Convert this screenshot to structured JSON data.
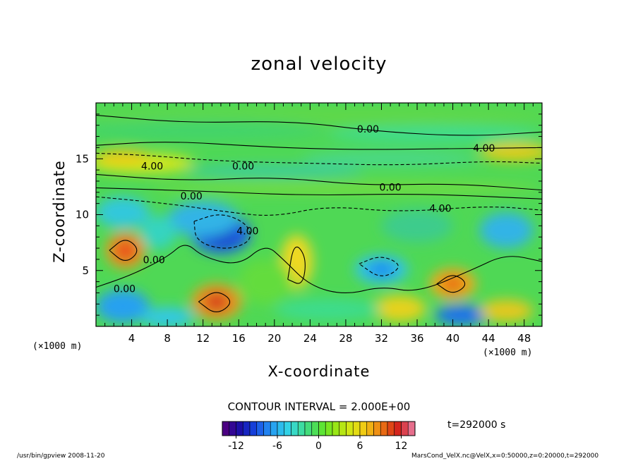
{
  "chart_data": {
    "type": "heatmap",
    "title": "zonal velocity",
    "xlabel": "X-coordinate",
    "ylabel": "Z-coordinate",
    "x_unit_label": "(×1000 m)",
    "y_unit_label": "",
    "x_ticks": [
      4,
      8,
      12,
      16,
      20,
      24,
      28,
      32,
      36,
      40,
      44,
      48
    ],
    "y_ticks": [
      5,
      10,
      15
    ],
    "xlim": [
      0,
      50
    ],
    "ylim": [
      0,
      20
    ],
    "contour_interval_label": "CONTOUR INTERVAL = 2.000E+00",
    "contour_labels": [
      {
        "text": "0.00",
        "x": 30.5,
        "y": 17.6
      },
      {
        "text": "4.00",
        "x": 43.5,
        "y": 15.9
      },
      {
        "text": "4.00",
        "x": 6.3,
        "y": 14.3
      },
      {
        "text": "0.00",
        "x": 16.5,
        "y": 14.3
      },
      {
        "text": "0.00",
        "x": 33.0,
        "y": 12.4
      },
      {
        "text": "0.00",
        "x": 10.7,
        "y": 11.6
      },
      {
        "text": "4.00",
        "x": 38.6,
        "y": 10.5
      },
      {
        "text": "4.00",
        "x": 17.0,
        "y": 8.5
      },
      {
        "text": "0.00",
        "x": 6.5,
        "y": 5.9
      },
      {
        "text": "0.00",
        "x": 3.2,
        "y": 3.3
      }
    ],
    "colorbar": {
      "min": -14,
      "max": 14,
      "ticks": [
        -12,
        -6,
        0,
        6,
        12
      ],
      "colors": [
        "#4b0082",
        "#1e0aa0",
        "#1432d2",
        "#1e6ef0",
        "#28aaf0",
        "#32d2e6",
        "#3cdcaa",
        "#46dc64",
        "#64e628",
        "#a0e614",
        "#d2e614",
        "#f0d214",
        "#f0a014",
        "#e65a14",
        "#d21e1e",
        "#e66e8c"
      ]
    },
    "grid": false
  },
  "time_label": "t=292000 s",
  "footer_left": "/usr/bin/gpview  2008-11-20",
  "footer_right": "MarsCond_VelX.nc@VelX,x=0:50000,z=0:20000,t=292000"
}
